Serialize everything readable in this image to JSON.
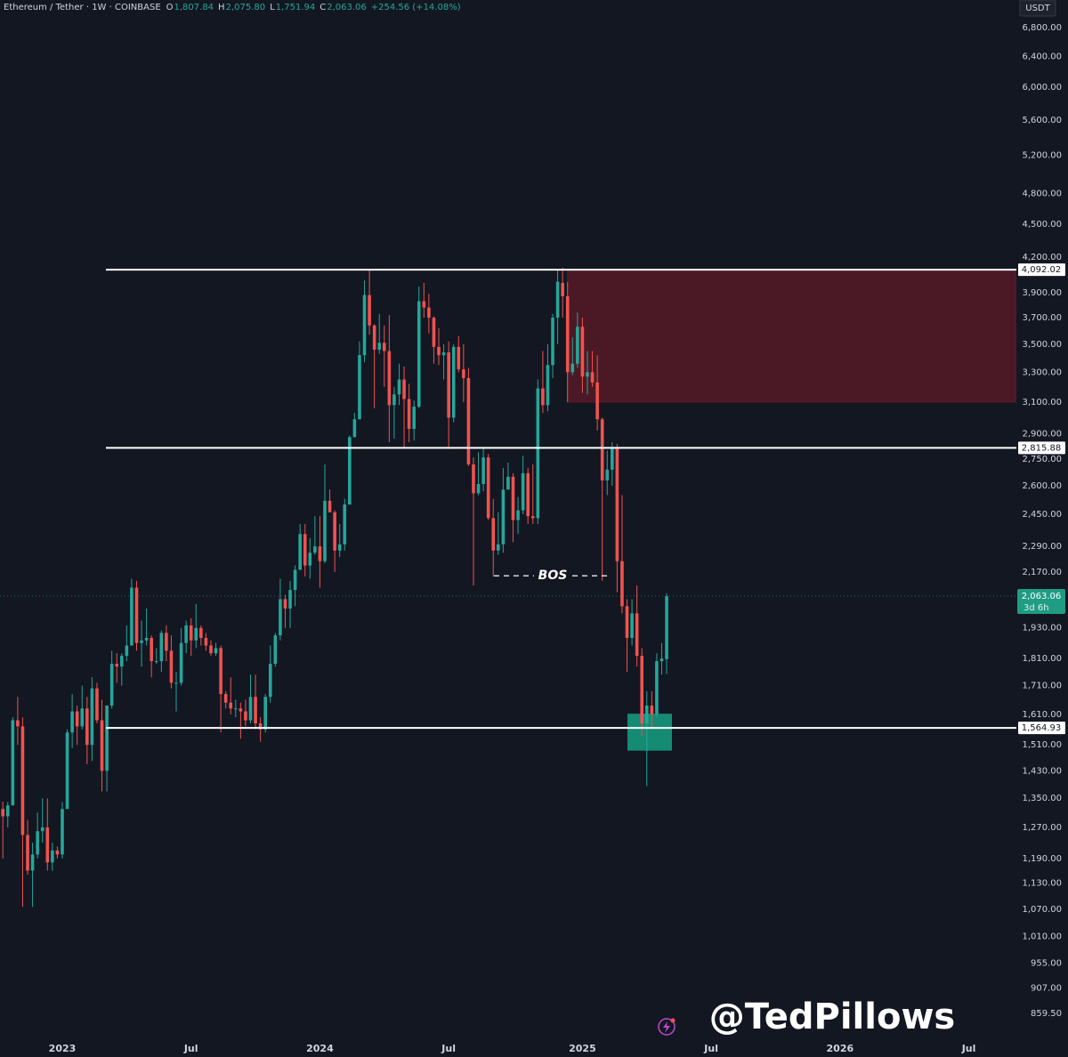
{
  "chart_data": {
    "type": "candlestick",
    "header": {
      "symbol": "Ethereum / Tether · 1W · COINBASE",
      "fields": [
        {
          "key": "O",
          "label": "1,807.84"
        },
        {
          "key": "H",
          "label": "2,075.80"
        },
        {
          "key": "L",
          "label": "1,751.94"
        },
        {
          "key": "C",
          "label": "2,063.06"
        }
      ],
      "change": "+254.56 (+14.08%)"
    },
    "currency": "USDT",
    "watermark": "@TedPillows",
    "up_color": "#26a69a",
    "down_color": "#ef5350",
    "log_scale": true,
    "grid": false,
    "ylim": [
      819,
      7205
    ],
    "yticks": [
      {
        "value": 6800,
        "label": "6,800.00"
      },
      {
        "value": 6400,
        "label": "6,400.00"
      },
      {
        "value": 6000,
        "label": "6,000.00"
      },
      {
        "value": 5600,
        "label": "5,600.00"
      },
      {
        "value": 5200,
        "label": "5,200.00"
      },
      {
        "value": 4800,
        "label": "4,800.00"
      },
      {
        "value": 4500,
        "label": "4,500.00"
      },
      {
        "value": 4200,
        "label": "4,200.00"
      },
      {
        "value": 3900,
        "label": "3,900.00"
      },
      {
        "value": 3700,
        "label": "3,700.00"
      },
      {
        "value": 3500,
        "label": "3,500.00"
      },
      {
        "value": 3300,
        "label": "3,300.00"
      },
      {
        "value": 3100,
        "label": "3,100.00"
      },
      {
        "value": 2900,
        "label": "2,900.00"
      },
      {
        "value": 2750,
        "label": "2,750.00"
      },
      {
        "value": 2600,
        "label": "2,600.00"
      },
      {
        "value": 2450,
        "label": "2,450.00"
      },
      {
        "value": 2290,
        "label": "2,290.00"
      },
      {
        "value": 2170,
        "label": "2,170.00"
      },
      {
        "value": 1930,
        "label": "1,930.00"
      },
      {
        "value": 1810,
        "label": "1,810.00"
      },
      {
        "value": 1710,
        "label": "1,710.00"
      },
      {
        "value": 1610,
        "label": "1,610.00"
      },
      {
        "value": 1510,
        "label": "1,510.00"
      },
      {
        "value": 1430,
        "label": "1,430.00"
      },
      {
        "value": 1350,
        "label": "1,350.00"
      },
      {
        "value": 1270,
        "label": "1,270.00"
      },
      {
        "value": 1190,
        "label": "1,190.00"
      },
      {
        "value": 1130,
        "label": "1,130.00"
      },
      {
        "value": 1070,
        "label": "1,070.00"
      },
      {
        "value": 1010,
        "label": "1,010.00"
      },
      {
        "value": 955,
        "label": "955.00"
      },
      {
        "value": 907,
        "label": "907.00"
      },
      {
        "value": 859.5,
        "label": "859.50"
      }
    ],
    "levels": [
      {
        "value": 4092.02,
        "label": "4,092.02"
      },
      {
        "value": 2815.88,
        "label": "2,815.88"
      },
      {
        "value": 1564.93,
        "label": "1,564.93"
      }
    ],
    "last_price": {
      "value": 2063.06,
      "label": "2,063.06",
      "countdown": "3d 6h"
    },
    "supply_zone": [
      3095,
      4092
    ],
    "demand_zone": [
      1492,
      1612
    ],
    "bos": {
      "label": "BOS",
      "value": 2153
    },
    "categories": [
      null,
      null,
      null,
      null,
      null,
      null,
      null,
      null,
      null,
      null,
      null,
      null,
      "2023",
      null,
      null,
      null,
      null,
      null,
      null,
      null,
      null,
      null,
      null,
      null,
      null,
      null,
      null,
      null,
      null,
      null,
      null,
      null,
      null,
      null,
      null,
      null,
      null,
      null,
      "Jul",
      null,
      null,
      null,
      null,
      null,
      null,
      null,
      null,
      null,
      null,
      null,
      null,
      null,
      null,
      null,
      null,
      null,
      null,
      null,
      null,
      null,
      null,
      null,
      null,
      null,
      "2024",
      null,
      null,
      null,
      null,
      null,
      null,
      null,
      null,
      null,
      null,
      null,
      null,
      null,
      null,
      null,
      null,
      null,
      null,
      null,
      null,
      null,
      null,
      null,
      null,
      null,
      "Jul",
      null,
      null,
      null,
      null,
      null,
      null,
      null,
      null,
      null,
      null,
      null,
      null,
      null,
      null,
      null,
      null,
      null,
      null,
      null,
      null,
      null,
      null,
      null,
      null,
      null,
      null,
      "2025",
      null,
      null,
      null,
      null,
      null,
      null,
      null,
      null,
      null,
      null,
      null,
      null,
      null,
      null,
      null,
      null,
      null,
      null,
      null,
      null,
      null,
      null,
      null,
      null,
      null,
      "Jul",
      null,
      null,
      null,
      null,
      null,
      null,
      null,
      null,
      null,
      null,
      null,
      null,
      null,
      null,
      null,
      null,
      null,
      null,
      null,
      null,
      null,
      null,
      null,
      null,
      null,
      "2026",
      null,
      null,
      null,
      null,
      null,
      null,
      null,
      null,
      null,
      null,
      null,
      null,
      null,
      null,
      null,
      null,
      null,
      null,
      null,
      null,
      null,
      null,
      null,
      null,
      null,
      "Jul",
      null,
      null,
      null,
      null,
      null,
      null,
      null,
      null,
      null
    ],
    "candles": [
      [
        1320,
        1340,
        1190,
        1300
      ],
      [
        1300,
        1340,
        1270,
        1330
      ],
      [
        1330,
        1600,
        1330,
        1590
      ],
      [
        1590,
        1670,
        1510,
        1570
      ],
      [
        1570,
        1600,
        1075,
        1250
      ],
      [
        1250,
        1290,
        1150,
        1160
      ],
      [
        1160,
        1230,
        1075,
        1200
      ],
      [
        1200,
        1310,
        1190,
        1260
      ],
      [
        1260,
        1350,
        1230,
        1270
      ],
      [
        1270,
        1350,
        1160,
        1180
      ],
      [
        1180,
        1230,
        1160,
        1210
      ],
      [
        1210,
        1220,
        1190,
        1200
      ],
      [
        1200,
        1340,
        1190,
        1320
      ],
      [
        1320,
        1560,
        1320,
        1550
      ],
      [
        1550,
        1680,
        1500,
        1620
      ],
      [
        1620,
        1640,
        1510,
        1570
      ],
      [
        1570,
        1710,
        1560,
        1630
      ],
      [
        1630,
        1670,
        1450,
        1510
      ],
      [
        1510,
        1740,
        1460,
        1700
      ],
      [
        1700,
        1720,
        1580,
        1590
      ],
      [
        1590,
        1660,
        1370,
        1430
      ],
      [
        1430,
        1640,
        1370,
        1640
      ],
      [
        1640,
        1840,
        1630,
        1790
      ],
      [
        1790,
        1830,
        1720,
        1780
      ],
      [
        1780,
        1830,
        1710,
        1820
      ],
      [
        1820,
        1940,
        1800,
        1860
      ],
      [
        1860,
        2140,
        1860,
        2100
      ],
      [
        2100,
        2130,
        1840,
        1870
      ],
      [
        1870,
        1960,
        1780,
        1880
      ],
      [
        1880,
        2010,
        1860,
        1890
      ],
      [
        1890,
        1900,
        1740,
        1800
      ],
      [
        1800,
        1850,
        1790,
        1800
      ],
      [
        1800,
        1920,
        1760,
        1910
      ],
      [
        1910,
        1940,
        1800,
        1840
      ],
      [
        1840,
        1900,
        1700,
        1720
      ],
      [
        1720,
        1760,
        1620,
        1720
      ],
      [
        1720,
        1930,
        1710,
        1870
      ],
      [
        1870,
        1960,
        1830,
        1940
      ],
      [
        1940,
        1970,
        1820,
        1880
      ],
      [
        1880,
        2030,
        1850,
        1930
      ],
      [
        1930,
        1940,
        1860,
        1890
      ],
      [
        1890,
        1910,
        1840,
        1860
      ],
      [
        1860,
        1880,
        1820,
        1830
      ],
      [
        1830,
        1870,
        1820,
        1850
      ],
      [
        1850,
        1860,
        1550,
        1680
      ],
      [
        1680,
        1690,
        1630,
        1650
      ],
      [
        1650,
        1740,
        1610,
        1630
      ],
      [
        1630,
        1660,
        1600,
        1630
      ],
      [
        1630,
        1650,
        1530,
        1620
      ],
      [
        1620,
        1660,
        1570,
        1590
      ],
      [
        1590,
        1750,
        1580,
        1670
      ],
      [
        1670,
        1750,
        1560,
        1580
      ],
      [
        1580,
        1600,
        1520,
        1560
      ],
      [
        1560,
        1680,
        1550,
        1670
      ],
      [
        1670,
        1860,
        1650,
        1790
      ],
      [
        1790,
        1910,
        1780,
        1900
      ],
      [
        1900,
        2140,
        1880,
        2050
      ],
      [
        2050,
        2070,
        1930,
        2010
      ],
      [
        2010,
        2130,
        1930,
        2090
      ],
      [
        2090,
        2200,
        2020,
        2180
      ],
      [
        2180,
        2400,
        2180,
        2350
      ],
      [
        2350,
        2400,
        2150,
        2200
      ],
      [
        2200,
        2330,
        2140,
        2260
      ],
      [
        2260,
        2440,
        2250,
        2290
      ],
      [
        2290,
        2440,
        2100,
        2220
      ],
      [
        2220,
        2720,
        2210,
        2520
      ],
      [
        2520,
        2580,
        2460,
        2460
      ],
      [
        2460,
        2470,
        2170,
        2270
      ],
      [
        2270,
        2400,
        2240,
        2300
      ],
      [
        2300,
        2530,
        2270,
        2500
      ],
      [
        2500,
        2890,
        2500,
        2880
      ],
      [
        2880,
        3030,
        2880,
        2990
      ],
      [
        2990,
        3520,
        2990,
        3420
      ],
      [
        3420,
        4000,
        3370,
        3880
      ],
      [
        3880,
        4090,
        3570,
        3640
      ],
      [
        3640,
        3650,
        3060,
        3460
      ],
      [
        3460,
        3730,
        3430,
        3510
      ],
      [
        3510,
        3640,
        3200,
        3450
      ],
      [
        3450,
        3720,
        2850,
        3080
      ],
      [
        3080,
        3200,
        2870,
        3150
      ],
      [
        3150,
        3360,
        3080,
        3250
      ],
      [
        3250,
        3340,
        2820,
        3120
      ],
      [
        3120,
        3220,
        2850,
        2930
      ],
      [
        2930,
        3110,
        2860,
        3070
      ],
      [
        3070,
        3950,
        3060,
        3830
      ],
      [
        3830,
        3980,
        3700,
        3780
      ],
      [
        3780,
        3890,
        3580,
        3700
      ],
      [
        3700,
        3710,
        3360,
        3480
      ],
      [
        3480,
        3620,
        3350,
        3420
      ],
      [
        3420,
        3500,
        3250,
        3440
      ],
      [
        3440,
        3520,
        2810,
        3000
      ],
      [
        3000,
        3500,
        2970,
        3480
      ],
      [
        3480,
        3560,
        3300,
        3320
      ],
      [
        3320,
        3500,
        3100,
        3260
      ],
      [
        3260,
        3330,
        2710,
        2720
      ],
      [
        2720,
        2760,
        2110,
        2560
      ],
      [
        2560,
        2790,
        2550,
        2610
      ],
      [
        2610,
        2820,
        2570,
        2760
      ],
      [
        2760,
        2780,
        2420,
        2430
      ],
      [
        2430,
        2530,
        2150,
        2270
      ],
      [
        2270,
        2460,
        2250,
        2300
      ],
      [
        2300,
        2700,
        2260,
        2580
      ],
      [
        2580,
        2730,
        2580,
        2650
      ],
      [
        2650,
        2670,
        2310,
        2420
      ],
      [
        2420,
        2540,
        2350,
        2470
      ],
      [
        2470,
        2770,
        2450,
        2670
      ],
      [
        2670,
        2700,
        2400,
        2440
      ],
      [
        2440,
        2720,
        2400,
        2430
      ],
      [
        2430,
        3250,
        2400,
        3190
      ],
      [
        3190,
        3450,
        3030,
        3080
      ],
      [
        3080,
        3500,
        3040,
        3350
      ],
      [
        3350,
        3730,
        3260,
        3700
      ],
      [
        3700,
        4090,
        3500,
        3990
      ],
      [
        3980,
        4110,
        3700,
        3870
      ],
      [
        3870,
        3990,
        3100,
        3300
      ],
      [
        3300,
        3550,
        3280,
        3360
      ],
      [
        3360,
        3740,
        3330,
        3630
      ],
      [
        3630,
        3700,
        3160,
        3270
      ],
      [
        3270,
        3450,
        3150,
        3300
      ],
      [
        3300,
        3450,
        3200,
        3230
      ],
      [
        3230,
        3420,
        2920,
        2990
      ],
      [
        2990,
        3000,
        2130,
        2630
      ],
      [
        2630,
        2800,
        2550,
        2690
      ],
      [
        2690,
        2850,
        2600,
        2820
      ],
      [
        2820,
        2840,
        2080,
        2220
      ],
      [
        2220,
        2550,
        1990,
        2020
      ],
      [
        2020,
        2050,
        1760,
        1890
      ],
      [
        1890,
        2050,
        1860,
        1990
      ],
      [
        1990,
        2110,
        1780,
        1820
      ],
      [
        1820,
        1850,
        1540,
        1580
      ],
      [
        1580,
        1690,
        1385,
        1640
      ],
      [
        1640,
        1690,
        1570,
        1610
      ],
      [
        1610,
        1830,
        1600,
        1800
      ],
      [
        1800,
        1870,
        1750,
        1810
      ],
      [
        1807.84,
        2075.8,
        1751.94,
        2063.06
      ],
      null,
      null,
      null,
      null,
      null,
      null,
      null,
      null,
      null,
      null,
      null,
      null,
      null,
      null,
      null,
      null,
      null,
      null,
      null,
      null,
      null,
      null,
      null,
      null,
      null,
      null,
      null,
      null,
      null,
      null,
      null,
      null,
      null,
      null,
      null,
      null,
      null,
      null,
      null,
      null,
      null,
      null,
      null,
      null,
      null,
      null,
      null,
      null,
      null,
      null,
      null,
      null,
      null,
      null,
      null,
      null,
      null,
      null,
      null,
      null,
      null,
      null,
      null,
      null,
      null,
      null,
      null,
      null,
      null,
      null
    ]
  }
}
